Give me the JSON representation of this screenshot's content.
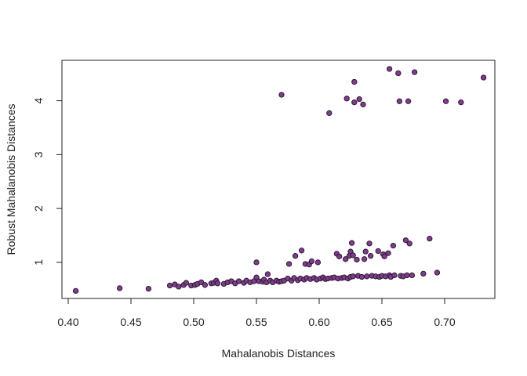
{
  "chart_data": {
    "type": "scatter",
    "title": "",
    "xlabel": "Mahalanobis Distances",
    "ylabel": "Robust Mahalanobis Distances",
    "xlim": [
      0.395,
      0.74
    ],
    "ylim": [
      0.33,
      4.75
    ],
    "x_ticks": [
      0.4,
      0.45,
      0.5,
      0.55,
      0.6,
      0.65,
      0.7
    ],
    "x_tick_labels": [
      "0.40",
      "0.45",
      "0.50",
      "0.55",
      "0.60",
      "0.65",
      "0.70"
    ],
    "y_ticks": [
      1,
      2,
      3,
      4
    ],
    "y_tick_labels": [
      "1",
      "2",
      "3",
      "4"
    ],
    "grid": false,
    "legend": "none",
    "point_color": "#7B3E87",
    "point_edge_color": "#2A1230",
    "points": [
      {
        "x": 0.406,
        "y": 0.47
      },
      {
        "x": 0.441,
        "y": 0.52
      },
      {
        "x": 0.464,
        "y": 0.51
      },
      {
        "x": 0.481,
        "y": 0.57
      },
      {
        "x": 0.485,
        "y": 0.59
      },
      {
        "x": 0.488,
        "y": 0.55
      },
      {
        "x": 0.492,
        "y": 0.58
      },
      {
        "x": 0.494,
        "y": 0.62
      },
      {
        "x": 0.498,
        "y": 0.57
      },
      {
        "x": 0.501,
        "y": 0.58
      },
      {
        "x": 0.503,
        "y": 0.6
      },
      {
        "x": 0.506,
        "y": 0.63
      },
      {
        "x": 0.509,
        "y": 0.58
      },
      {
        "x": 0.514,
        "y": 0.61
      },
      {
        "x": 0.516,
        "y": 0.62
      },
      {
        "x": 0.518,
        "y": 0.66
      },
      {
        "x": 0.519,
        "y": 0.61
      },
      {
        "x": 0.524,
        "y": 0.6
      },
      {
        "x": 0.527,
        "y": 0.63
      },
      {
        "x": 0.53,
        "y": 0.65
      },
      {
        "x": 0.533,
        "y": 0.61
      },
      {
        "x": 0.536,
        "y": 0.65
      },
      {
        "x": 0.54,
        "y": 0.62
      },
      {
        "x": 0.542,
        "y": 0.66
      },
      {
        "x": 0.545,
        "y": 0.63
      },
      {
        "x": 0.548,
        "y": 0.65
      },
      {
        "x": 0.55,
        "y": 0.72
      },
      {
        "x": 0.55,
        "y": 1.0
      },
      {
        "x": 0.552,
        "y": 0.65
      },
      {
        "x": 0.555,
        "y": 0.64
      },
      {
        "x": 0.556,
        "y": 0.68
      },
      {
        "x": 0.558,
        "y": 0.63
      },
      {
        "x": 0.559,
        "y": 0.78
      },
      {
        "x": 0.561,
        "y": 0.66
      },
      {
        "x": 0.563,
        "y": 0.63
      },
      {
        "x": 0.566,
        "y": 0.66
      },
      {
        "x": 0.568,
        "y": 0.64
      },
      {
        "x": 0.57,
        "y": 0.65
      },
      {
        "x": 0.57,
        "y": 4.11
      },
      {
        "x": 0.572,
        "y": 0.66
      },
      {
        "x": 0.575,
        "y": 0.7
      },
      {
        "x": 0.576,
        "y": 0.97
      },
      {
        "x": 0.578,
        "y": 0.66
      },
      {
        "x": 0.58,
        "y": 0.71
      },
      {
        "x": 0.581,
        "y": 1.12
      },
      {
        "x": 0.583,
        "y": 0.67
      },
      {
        "x": 0.585,
        "y": 0.7
      },
      {
        "x": 0.586,
        "y": 1.22
      },
      {
        "x": 0.588,
        "y": 0.68
      },
      {
        "x": 0.589,
        "y": 0.97
      },
      {
        "x": 0.59,
        "y": 0.71
      },
      {
        "x": 0.592,
        "y": 0.96
      },
      {
        "x": 0.593,
        "y": 0.69
      },
      {
        "x": 0.594,
        "y": 1.02
      },
      {
        "x": 0.596,
        "y": 0.71
      },
      {
        "x": 0.598,
        "y": 0.68
      },
      {
        "x": 0.599,
        "y": 1.0
      },
      {
        "x": 0.601,
        "y": 0.7
      },
      {
        "x": 0.603,
        "y": 0.72
      },
      {
        "x": 0.605,
        "y": 0.69
      },
      {
        "x": 0.607,
        "y": 0.7
      },
      {
        "x": 0.608,
        "y": 3.77
      },
      {
        "x": 0.61,
        "y": 0.71
      },
      {
        "x": 0.612,
        "y": 0.72
      },
      {
        "x": 0.614,
        "y": 1.16
      },
      {
        "x": 0.615,
        "y": 0.7
      },
      {
        "x": 0.616,
        "y": 1.11
      },
      {
        "x": 0.618,
        "y": 0.71
      },
      {
        "x": 0.62,
        "y": 0.72
      },
      {
        "x": 0.621,
        "y": 1.06
      },
      {
        "x": 0.622,
        "y": 4.04
      },
      {
        "x": 0.623,
        "y": 0.7
      },
      {
        "x": 0.624,
        "y": 1.12
      },
      {
        "x": 0.625,
        "y": 0.73
      },
      {
        "x": 0.625,
        "y": 1.2
      },
      {
        "x": 0.626,
        "y": 1.36
      },
      {
        "x": 0.627,
        "y": 1.13
      },
      {
        "x": 0.627,
        "y": 0.74
      },
      {
        "x": 0.628,
        "y": 4.35
      },
      {
        "x": 0.628,
        "y": 3.97
      },
      {
        "x": 0.63,
        "y": 1.05
      },
      {
        "x": 0.631,
        "y": 0.75
      },
      {
        "x": 0.632,
        "y": 4.03
      },
      {
        "x": 0.634,
        "y": 0.73
      },
      {
        "x": 0.635,
        "y": 3.93
      },
      {
        "x": 0.636,
        "y": 1.06
      },
      {
        "x": 0.637,
        "y": 1.2
      },
      {
        "x": 0.638,
        "y": 0.74
      },
      {
        "x": 0.64,
        "y": 1.35
      },
      {
        "x": 0.641,
        "y": 1.12
      },
      {
        "x": 0.642,
        "y": 0.75
      },
      {
        "x": 0.645,
        "y": 0.74
      },
      {
        "x": 0.647,
        "y": 1.21
      },
      {
        "x": 0.648,
        "y": 0.73
      },
      {
        "x": 0.65,
        "y": 0.75
      },
      {
        "x": 0.651,
        "y": 1.15
      },
      {
        "x": 0.652,
        "y": 1.11
      },
      {
        "x": 0.653,
        "y": 0.74
      },
      {
        "x": 0.655,
        "y": 1.17
      },
      {
        "x": 0.656,
        "y": 4.59
      },
      {
        "x": 0.656,
        "y": 0.76
      },
      {
        "x": 0.657,
        "y": 0.73
      },
      {
        "x": 0.659,
        "y": 1.31
      },
      {
        "x": 0.66,
        "y": 0.76
      },
      {
        "x": 0.663,
        "y": 4.51
      },
      {
        "x": 0.664,
        "y": 3.99
      },
      {
        "x": 0.665,
        "y": 0.75
      },
      {
        "x": 0.667,
        "y": 0.74
      },
      {
        "x": 0.669,
        "y": 1.41
      },
      {
        "x": 0.67,
        "y": 0.76
      },
      {
        "x": 0.671,
        "y": 3.99
      },
      {
        "x": 0.672,
        "y": 1.35
      },
      {
        "x": 0.674,
        "y": 0.76
      },
      {
        "x": 0.676,
        "y": 4.53
      },
      {
        "x": 0.683,
        "y": 0.79
      },
      {
        "x": 0.688,
        "y": 1.44
      },
      {
        "x": 0.694,
        "y": 0.81
      },
      {
        "x": 0.701,
        "y": 3.99
      },
      {
        "x": 0.713,
        "y": 3.97
      },
      {
        "x": 0.731,
        "y": 4.43
      }
    ]
  }
}
